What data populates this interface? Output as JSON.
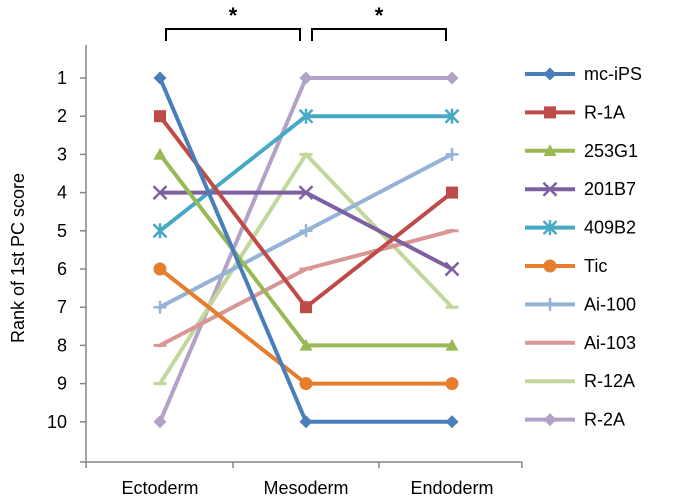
{
  "chart_data": {
    "type": "line",
    "title": "",
    "xlabel": "",
    "ylabel": "Rank of 1st PC score",
    "categories": [
      "Ectoderm",
      "Mesoderm",
      "Endoderm"
    ],
    "y_ticks": [
      "1",
      "2",
      "3",
      "4",
      "5",
      "6",
      "7",
      "8",
      "9",
      "10"
    ],
    "ylim": [
      0.5,
      11
    ],
    "y_reversed": true,
    "grid": false,
    "legend_position": "right",
    "significance": [
      {
        "from": "Ectoderm",
        "to": "Mesoderm",
        "label": "*"
      },
      {
        "from": "Mesoderm",
        "to": "Endoderm",
        "label": "*"
      }
    ],
    "series": [
      {
        "name": "mc-iPS",
        "color": "#4a7ebb",
        "marker": "diamond",
        "values": [
          1,
          10,
          10
        ]
      },
      {
        "name": "R-1A",
        "color": "#be4b48",
        "marker": "square",
        "values": [
          2,
          7,
          4
        ]
      },
      {
        "name": "253G1",
        "color": "#98b954",
        "marker": "triangle",
        "values": [
          3,
          8,
          8
        ]
      },
      {
        "name": "201B7",
        "color": "#7d60a0",
        "marker": "x",
        "values": [
          4,
          4,
          6
        ]
      },
      {
        "name": "409B2",
        "color": "#46aac5",
        "marker": "star",
        "values": [
          5,
          2,
          2
        ]
      },
      {
        "name": "Tic",
        "color": "#e67e2e",
        "marker": "circle",
        "values": [
          6,
          9,
          9
        ]
      },
      {
        "name": "Ai-100",
        "color": "#95b3d7",
        "marker": "plus",
        "values": [
          7,
          5,
          3
        ]
      },
      {
        "name": "Ai-103",
        "color": "#d99694",
        "marker": "dash",
        "values": [
          8,
          6,
          5
        ]
      },
      {
        "name": "R-12A",
        "color": "#c3d69b",
        "marker": "dash",
        "values": [
          9,
          3,
          7
        ]
      },
      {
        "name": "R-2A",
        "color": "#b3a2c7",
        "marker": "diamond",
        "values": [
          10,
          1,
          1
        ]
      }
    ]
  }
}
